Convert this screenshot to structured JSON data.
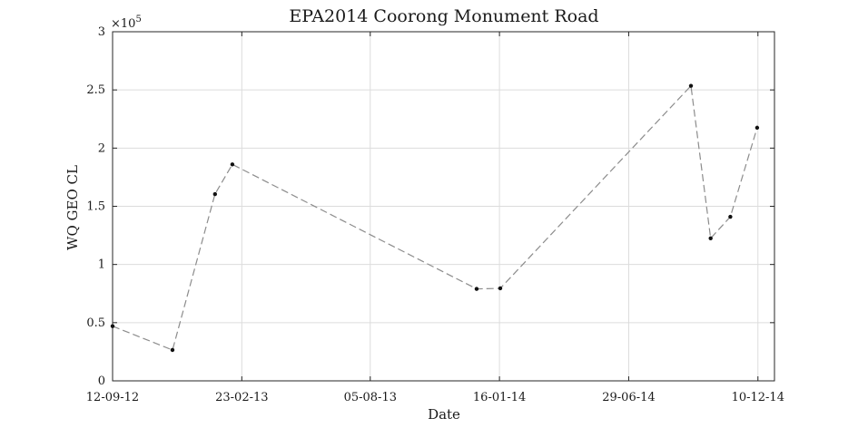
{
  "chart_data": {
    "type": "line",
    "title": "EPA2014 Coorong Monument Road",
    "xlabel": "Date",
    "ylabel": "WQ GEO CL",
    "y_exponent_label": "×10",
    "y_exponent_value": "5",
    "ylim": [
      0,
      300000
    ],
    "yticks": [
      0,
      50000,
      100000,
      150000,
      200000,
      250000,
      300000
    ],
    "ytick_labels": [
      "0",
      "0.5",
      "1",
      "1.5",
      "2",
      "2.5",
      "3"
    ],
    "xlim": [
      "2012-09-12",
      "2014-12-31"
    ],
    "xticks": [
      "2012-09-12",
      "2013-02-23",
      "2013-08-05",
      "2014-01-16",
      "2014-06-29",
      "2014-12-10"
    ],
    "xtick_labels": [
      "12-09-12",
      "23-02-13",
      "05-08-13",
      "16-01-14",
      "29-06-14",
      "10-12-14"
    ],
    "grid": true,
    "series": [
      {
        "x": [
          "2012-09-12",
          "2012-11-27",
          "2013-01-20",
          "2013-02-11",
          "2013-12-18",
          "2014-01-17",
          "2014-09-16",
          "2014-10-11",
          "2014-11-05",
          "2014-12-09"
        ],
        "y": [
          47000,
          26500,
          160500,
          186000,
          79000,
          79500,
          253500,
          122500,
          141000,
          217500
        ]
      }
    ]
  }
}
